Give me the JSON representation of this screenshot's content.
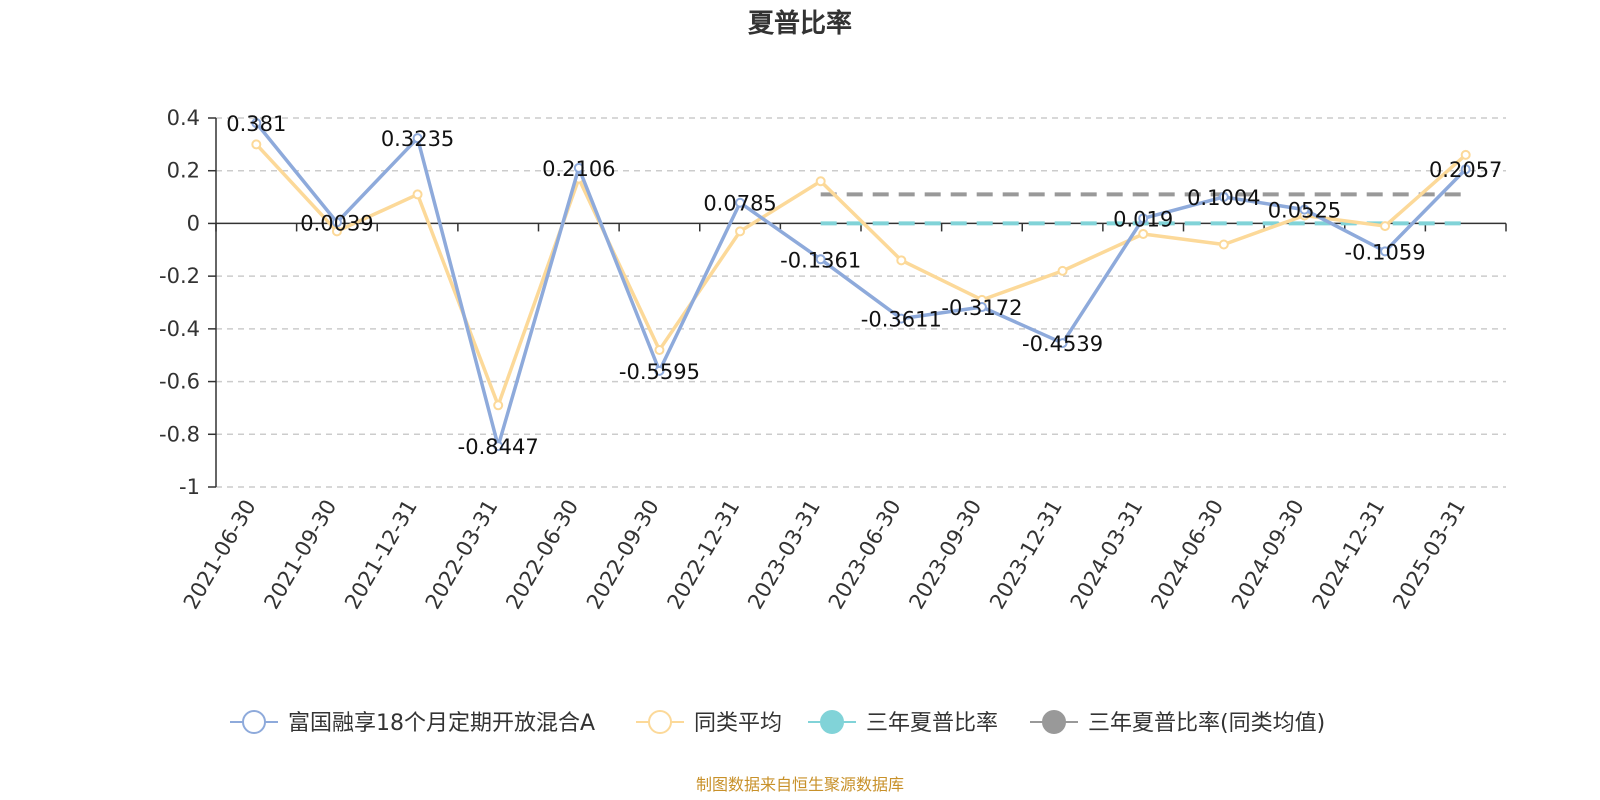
{
  "chart_data": {
    "type": "line",
    "title": "夏普比率",
    "source": "制图数据来自恒生聚源数据库",
    "categories": [
      "2021-06-30",
      "2021-09-30",
      "2021-12-31",
      "2022-03-31",
      "2022-06-30",
      "2022-09-30",
      "2022-12-31",
      "2023-03-31",
      "2023-06-30",
      "2023-09-30",
      "2023-12-31",
      "2024-03-31",
      "2024-06-30",
      "2024-09-30",
      "2024-12-31",
      "2025-03-31"
    ],
    "ylim": [
      -1,
      0.4
    ],
    "yticks": [
      0.4,
      0.2,
      0,
      -0.2,
      -0.4,
      -0.6,
      -0.8,
      -1
    ],
    "ytick_labels": [
      "0.4",
      "0.2",
      "0",
      "-0.2",
      "-0.4",
      "-0.6",
      "-0.8",
      "-1"
    ],
    "grid": true,
    "legend_position": "bottom",
    "series": [
      {
        "name": "富国融享18个月定期开放混合A",
        "color": "#8eaadb",
        "values": [
          0.381,
          0.0039,
          0.3235,
          -0.8447,
          0.2106,
          -0.5595,
          0.0785,
          -0.1361,
          -0.3611,
          -0.3172,
          -0.4539,
          0.019,
          0.1004,
          0.0525,
          -0.1059,
          0.2057
        ],
        "labels": [
          "0.381",
          "0.0039",
          "0.3235",
          "-0.8447",
          "0.2106",
          "-0.5595",
          "0.0785",
          "-0.1361",
          "-0.3611",
          "-0.3172",
          "-0.4539",
          "0.019",
          "0.1004",
          "0.0525",
          "-0.1059",
          "0.2057"
        ]
      },
      {
        "name": "同类平均",
        "color": "#fcd999",
        "values": [
          0.3,
          -0.03,
          0.11,
          -0.69,
          0.17,
          -0.48,
          -0.03,
          0.16,
          -0.14,
          -0.29,
          -0.18,
          -0.04,
          -0.08,
          0.03,
          -0.01,
          0.26
        ]
      },
      {
        "name": "三年夏普比率",
        "color": "#81d3d8",
        "type": "dashed-line",
        "value": 0.0,
        "range": [
          "2023-03-31",
          "2025-03-31"
        ]
      },
      {
        "name": "三年夏普比率(同类均值)",
        "color": "#999999",
        "type": "dashed-line",
        "value": 0.11,
        "range": [
          "2023-03-31",
          "2025-03-31"
        ]
      }
    ]
  }
}
